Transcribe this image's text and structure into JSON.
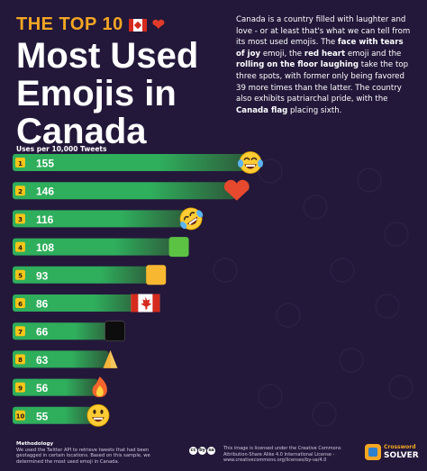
{
  "header": {
    "top_label": "THE TOP 10",
    "title_line1": "Most Used",
    "title_line2": "Emojis in",
    "title_line3": "Canada"
  },
  "description": {
    "p1": "Canada is a country filled with laughter and love - or at least that's what we can tell from its most used emojis. The ",
    "b1": "face with tears of joy",
    "p2": " emoji, the ",
    "b2": "red heart",
    "p3": " emoji and the ",
    "b3": "rolling on the floor laughing",
    "p4": " take the top three spots, with former only being favored 39 more times than the latter. The country also exhibits patriarchal pride, with the ",
    "b4": "Canada flag",
    "p5": " placing sixth."
  },
  "footer": {
    "methodology_title": "Methodology",
    "methodology_text": "We used the Twitter API to retrieve tweets that had been geotagged in certain locations. Based on this sample, we determined the most used emoji in Canada.",
    "license_text": "This image is licensed under the Creative Commons Attribution-Share Alike 4.0 International License - www.creativecommons.org/licenses/by-sa/4.0",
    "cc_icons": [
      "cc",
      "by",
      "sa"
    ],
    "brand_top": "Crossword",
    "brand_bottom": "SOLVER"
  },
  "colors": {
    "background": "#23183a",
    "accent": "#f5a623",
    "bar_green": "#2fae5c",
    "rank_badge": "#f5c518"
  },
  "chart_data": {
    "type": "bar",
    "orientation": "horizontal",
    "ylabel": "Uses per 10,000 Tweets",
    "ranks": [
      "1",
      "2",
      "3",
      "4",
      "5",
      "6",
      "7",
      "8",
      "9",
      "10"
    ],
    "values": [
      155,
      146,
      116,
      108,
      93,
      86,
      66,
      63,
      56,
      55
    ],
    "emojis": [
      "face-with-tears-of-joy",
      "red-heart",
      "rolling-on-the-floor-laughing",
      "green-square",
      "orange-square",
      "canada-flag",
      "black-square",
      "folded-hands",
      "fire",
      "smiling-face-with-open-mouth"
    ],
    "xlim": [
      0,
      155
    ]
  }
}
